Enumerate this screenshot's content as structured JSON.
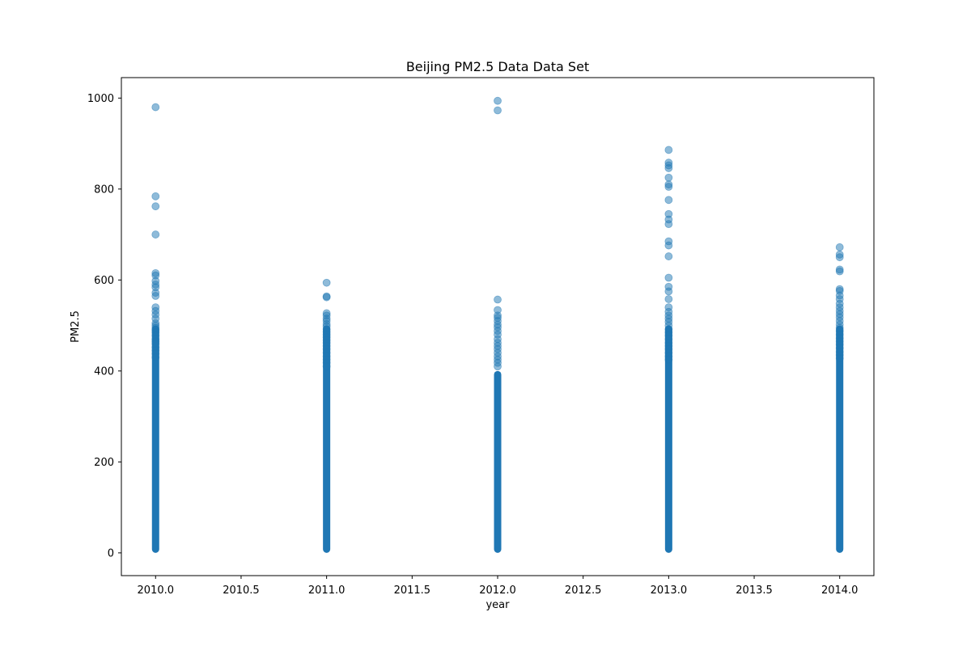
{
  "chart_data": {
    "type": "scatter",
    "title": "Beijing PM2.5 Data Data Set",
    "xlabel": "year",
    "ylabel": "PM2.5",
    "xlim": [
      2009.8,
      2014.2
    ],
    "ylim": [
      -50,
      1045
    ],
    "x_ticks": [
      2010.0,
      2010.5,
      2011.0,
      2011.5,
      2012.0,
      2012.5,
      2013.0,
      2013.5,
      2014.0
    ],
    "x_tick_labels": [
      "2010.0",
      "2010.5",
      "2011.0",
      "2011.5",
      "2012.0",
      "2012.5",
      "2013.0",
      "2013.5",
      "2014.0"
    ],
    "y_ticks": [
      0,
      200,
      400,
      600,
      800,
      1000
    ],
    "y_tick_labels": [
      "0",
      "200",
      "400",
      "600",
      "800",
      "1000"
    ],
    "grid": false,
    "marker_color": "#1f77b4",
    "marker_alpha": 0.5,
    "series": [
      {
        "x_value": 2010,
        "dense_range": [
          0,
          500
        ],
        "values": [
          980,
          784,
          762,
          700,
          615,
          610,
          598,
          590,
          584,
          572,
          565,
          540,
          532,
          524,
          515,
          505,
          500,
          495,
          490,
          485,
          478,
          470,
          465,
          460,
          452,
          445,
          438,
          430
        ]
      },
      {
        "x_value": 2011,
        "dense_range": [
          0,
          500
        ],
        "values": [
          594,
          564,
          562,
          527,
          522,
          515,
          510,
          503,
          498,
          492,
          486,
          480,
          474,
          468,
          462,
          455,
          448,
          440,
          432,
          425,
          418,
          410
        ]
      },
      {
        "x_value": 2012,
        "dense_range": [
          0,
          400
        ],
        "values": [
          994,
          973,
          557,
          534,
          522,
          517,
          510,
          502,
          496,
          488,
          480,
          470,
          462,
          455,
          448,
          440,
          432,
          425,
          418,
          410
        ]
      },
      {
        "x_value": 2013,
        "dense_range": [
          0,
          500
        ],
        "values": [
          886,
          858,
          852,
          846,
          825,
          810,
          805,
          776,
          745,
          733,
          723,
          685,
          676,
          652,
          605,
          585,
          575,
          558,
          540,
          530,
          522,
          515,
          508,
          500,
          492,
          485,
          478,
          470,
          462,
          455,
          448,
          440,
          432,
          425
        ]
      },
      {
        "x_value": 2014,
        "dense_range": [
          0,
          500
        ],
        "values": [
          672,
          656,
          650,
          623,
          619,
          580,
          576,
          566,
          558,
          548,
          540,
          532,
          525,
          518,
          510,
          502,
          495,
          488,
          480,
          472,
          465,
          458,
          450,
          442,
          435,
          428
        ]
      }
    ]
  }
}
